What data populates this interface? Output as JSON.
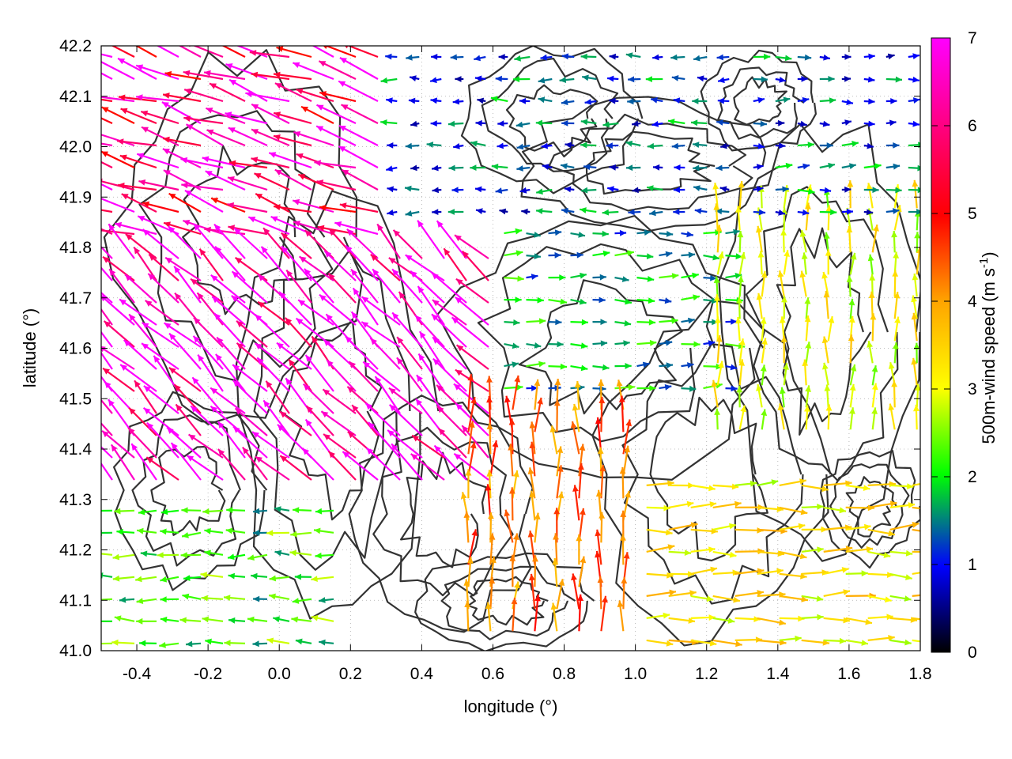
{
  "chart_data": {
    "type": "vector-field",
    "title": "",
    "xlabel": "longitude (°)",
    "ylabel": "latitude (°)",
    "xlim": [
      -0.5,
      1.8
    ],
    "ylim": [
      41.0,
      42.2
    ],
    "xticks": [
      -0.4,
      -0.2,
      0.0,
      0.2,
      0.4,
      0.6,
      0.8,
      1.0,
      1.2,
      1.4,
      1.6,
      1.8
    ],
    "xtick_labels": [
      "-0.4",
      "-0.2",
      "0.0",
      "0.2",
      "0.4",
      "0.6",
      "0.8",
      "1.0",
      "1.2",
      "1.4",
      "1.6",
      "1.8"
    ],
    "yticks": [
      41.0,
      41.1,
      41.2,
      41.3,
      41.4,
      41.5,
      41.6,
      41.7,
      41.8,
      41.9,
      42.0,
      42.1,
      42.2
    ],
    "ytick_labels": [
      "41.0",
      "41.1",
      "41.2",
      "41.3",
      "41.4",
      "41.5",
      "41.6",
      "41.7",
      "41.8",
      "41.9",
      "42.0",
      "42.1",
      "42.2"
    ],
    "grid": "dotted",
    "colorbar": {
      "label_main": "500m-wind speed (m s",
      "label_sup": "-1",
      "label_close": ")",
      "range": [
        0,
        7
      ],
      "ticks": [
        0,
        1,
        2,
        3,
        4,
        5,
        6,
        7
      ],
      "tick_labels": [
        "0",
        "1",
        "2",
        "3",
        "4",
        "5",
        "6",
        "7"
      ],
      "colors": [
        "#000000",
        "#0000ff",
        "#00ff00",
        "#ffff00",
        "#ffa500",
        "#ff0000",
        "#ff00ff"
      ]
    },
    "contour_color": "#333333",
    "vector_regions": [
      {
        "region": "north-west",
        "lon": [
          -0.5,
          0.3
        ],
        "lat": [
          41.8,
          42.2
        ],
        "direction": "west-north-west",
        "speed": 6.5
      },
      {
        "region": "west-central jet",
        "lon": [
          -0.5,
          0.6
        ],
        "lat": [
          41.3,
          41.8
        ],
        "direction": "north-west",
        "speed": 7.0
      },
      {
        "region": "south-west",
        "lon": [
          -0.5,
          0.2
        ],
        "lat": [
          41.0,
          41.3
        ],
        "direction": "west",
        "speed": 2.5
      },
      {
        "region": "north-central",
        "lon": [
          0.3,
          1.3
        ],
        "lat": [
          41.85,
          42.2
        ],
        "direction": "west",
        "speed": 1.5
      },
      {
        "region": "central",
        "lon": [
          0.6,
          1.3
        ],
        "lat": [
          41.5,
          41.85
        ],
        "direction": "east",
        "speed": 2.0
      },
      {
        "region": "south-central",
        "lon": [
          0.5,
          1.0
        ],
        "lat": [
          41.0,
          41.5
        ],
        "direction": "north",
        "speed": 5.0
      },
      {
        "region": "east",
        "lon": [
          1.2,
          1.8
        ],
        "lat": [
          41.4,
          41.9
        ],
        "direction": "north",
        "speed": 3.5
      },
      {
        "region": "south-east",
        "lon": [
          1.0,
          1.8
        ],
        "lat": [
          41.0,
          41.35
        ],
        "direction": "east",
        "speed": 3.8
      },
      {
        "region": "north-east",
        "lon": [
          1.3,
          1.8
        ],
        "lat": [
          41.85,
          42.2
        ],
        "direction": "east",
        "speed": 1.5
      }
    ]
  }
}
